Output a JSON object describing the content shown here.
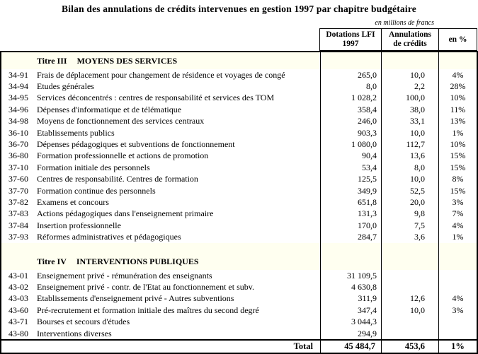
{
  "title": "Bilan des annulations de crédits intervenues en gestion 1997 par chapitre budgétaire",
  "unit_note": "en millions de francs",
  "columns": {
    "dotations_line1": "Dotations LFI",
    "dotations_line2": "1997",
    "annulations_line1": "Annulations",
    "annulations_line2": "de crédits",
    "percent": "en %"
  },
  "sections": [
    {
      "heading_prefix": "Titre III",
      "heading_name": "MOYENS DES SERVICES",
      "rows": [
        {
          "code": "34-91",
          "label": "Frais de déplacement pour changement de résidence et voyages de congé",
          "dotation": "265,0",
          "annulation": "10,0",
          "percent": "4%"
        },
        {
          "code": "34-94",
          "label": "Etudes générales",
          "dotation": "8,0",
          "annulation": "2,2",
          "percent": "28%"
        },
        {
          "code": "34-95",
          "label": "Services déconcentrés : centres de responsabilité et services des TOM",
          "dotation": "1 028,2",
          "annulation": "100,0",
          "percent": "10%"
        },
        {
          "code": "34-96",
          "label": "Dépenses d'informatique et de télématique",
          "dotation": "358,4",
          "annulation": "38,0",
          "percent": "11%"
        },
        {
          "code": "34-98",
          "label": "Moyens de fonctionnement des services centraux",
          "dotation": "246,0",
          "annulation": "33,1",
          "percent": "13%"
        },
        {
          "code": "36-10",
          "label": "Etablissements publics",
          "dotation": "903,3",
          "annulation": "10,0",
          "percent": "1%"
        },
        {
          "code": "36-70",
          "label": "Dépenses pédagogiques et subventions de fonctionnement",
          "dotation": "1 080,0",
          "annulation": "112,7",
          "percent": "10%"
        },
        {
          "code": "36-80",
          "label": "Formation professionnelle et actions de promotion",
          "dotation": "90,4",
          "annulation": "13,6",
          "percent": "15%"
        },
        {
          "code": "37-10",
          "label": "Formation initiale des personnels",
          "dotation": "53,4",
          "annulation": "8,0",
          "percent": "15%"
        },
        {
          "code": "37-60",
          "label": "Centres de responsabilité. Centres de formation",
          "dotation": "125,5",
          "annulation": "10,0",
          "percent": "8%"
        },
        {
          "code": "37-70",
          "label": "Formation continue des personnels",
          "dotation": "349,9",
          "annulation": "52,5",
          "percent": "15%"
        },
        {
          "code": "37-82",
          "label": "Examens et concours",
          "dotation": "651,8",
          "annulation": "20,0",
          "percent": "3%"
        },
        {
          "code": "37-83",
          "label": "Actions pédagogiques dans l'enseignement primaire",
          "dotation": "131,3",
          "annulation": "9,8",
          "percent": "7%"
        },
        {
          "code": "37-84",
          "label": "Insertion professionnelle",
          "dotation": "170,0",
          "annulation": "7,5",
          "percent": "4%"
        },
        {
          "code": "37-93",
          "label": "Réformes administratives et pédagogiques",
          "dotation": "284,7",
          "annulation": "3,6",
          "percent": "1%"
        }
      ]
    },
    {
      "heading_prefix": "Titre IV",
      "heading_name": "INTERVENTIONS PUBLIQUES",
      "rows": [
        {
          "code": "43-01",
          "label": "Enseignement privé - rémunération des enseignants",
          "dotation": "31 109,5",
          "annulation": "",
          "percent": ""
        },
        {
          "code": "43-02",
          "label": "Enseignement privé - contr. de l'Etat au fonctionnement et subv.",
          "dotation": "4 630,8",
          "annulation": "",
          "percent": ""
        },
        {
          "code": "43-03",
          "label": "Etablissements d'enseignement privé - Autres subventions",
          "dotation": "311,9",
          "annulation": "12,6",
          "percent": "4%"
        },
        {
          "code": "43-60",
          "label": "Pré-recrutement et formation initiale des maîtres du second degré",
          "dotation": "347,4",
          "annulation": "10,0",
          "percent": "3%"
        },
        {
          "code": "43-71",
          "label": "Bourses et secours d'études",
          "dotation": "3 044,3",
          "annulation": "",
          "percent": ""
        },
        {
          "code": "43-80",
          "label": "Interventions diverses",
          "dotation": "294,9",
          "annulation": "",
          "percent": ""
        }
      ]
    }
  ],
  "total": {
    "label": "Total",
    "dotation": "45 484,7",
    "annulation": "453,6",
    "percent": "1%"
  },
  "colors": {
    "section_bg": "#fffff0",
    "border": "#000000"
  }
}
